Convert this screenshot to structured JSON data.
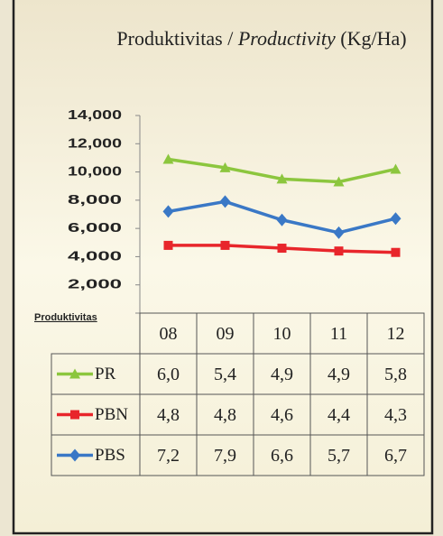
{
  "chart_data": {
    "type": "line",
    "title": {
      "plain": "Produktivitas / ",
      "italic": "Productivity",
      "unit": " (Kg/Ha)"
    },
    "row_header": "Produktivitas",
    "categories": [
      "08",
      "09",
      "10",
      "11",
      "12"
    ],
    "ylim": [
      0,
      14000
    ],
    "yticks": [
      {
        "value": 2000,
        "label": "2,000"
      },
      {
        "value": 4000,
        "label": "4,000"
      },
      {
        "value": 6000,
        "label": "6,000"
      },
      {
        "value": 8000,
        "label": "8,000"
      },
      {
        "value": 10000,
        "label": "10,000"
      },
      {
        "value": 12000,
        "label": "12,000"
      },
      {
        "value": 14000,
        "label": "14,000"
      }
    ],
    "series": [
      {
        "name": "PR",
        "color": "#8cc63e",
        "marker": "triangle",
        "values": [
          10900,
          10300,
          9500,
          9300,
          10200
        ],
        "table": [
          "6,0",
          "5,4",
          "4,9",
          "4,9",
          "5,8"
        ]
      },
      {
        "name": "PBN",
        "color": "#e8262b",
        "marker": "square",
        "values": [
          4800,
          4800,
          4600,
          4400,
          4300
        ],
        "table": [
          "4,8",
          "4,8",
          "4,6",
          "4,4",
          "4,3"
        ]
      },
      {
        "name": "PBS",
        "color": "#3a78c6",
        "marker": "diamond",
        "values": [
          7200,
          7900,
          6600,
          5700,
          6700
        ],
        "table": [
          "7,2",
          "7,9",
          "6,6",
          "5,7",
          "6,7"
        ]
      }
    ]
  }
}
